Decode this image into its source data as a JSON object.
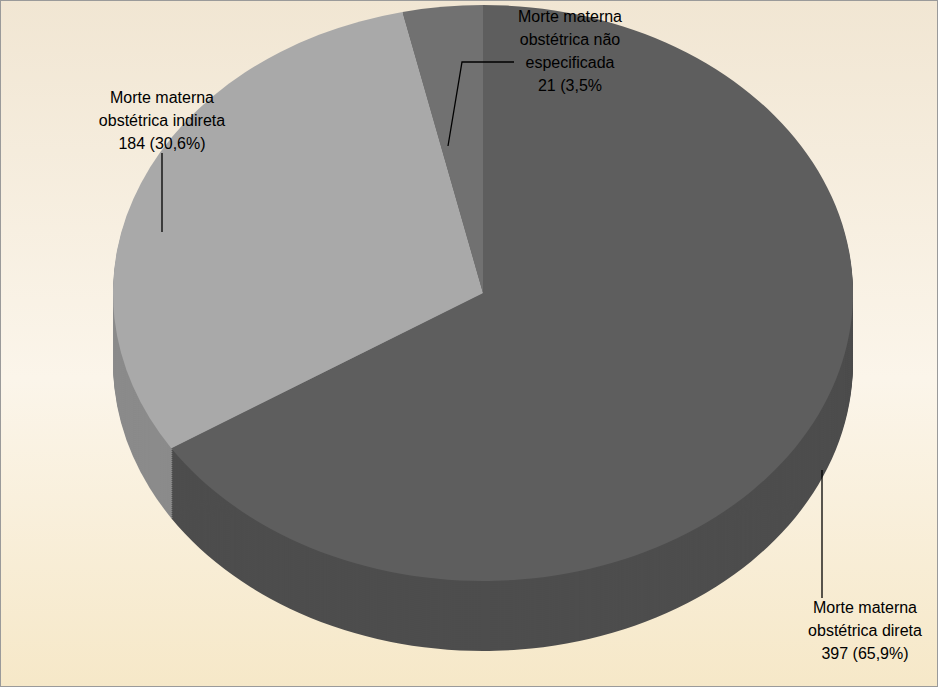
{
  "chart_data": {
    "type": "pie",
    "categories": [
      "Morte materna obstétrica direta",
      "Morte materna obstétrica indireta",
      "Morte materna obstétrica não especificada"
    ],
    "values": [
      397,
      184,
      21
    ],
    "value_labels": [
      "397 (65,9%)",
      "184 (30,6%)",
      "21 (3,5%"
    ],
    "colors": [
      "#5e5e5e",
      "#a9a9a9",
      "#717171"
    ],
    "data_labels": true
  }
}
